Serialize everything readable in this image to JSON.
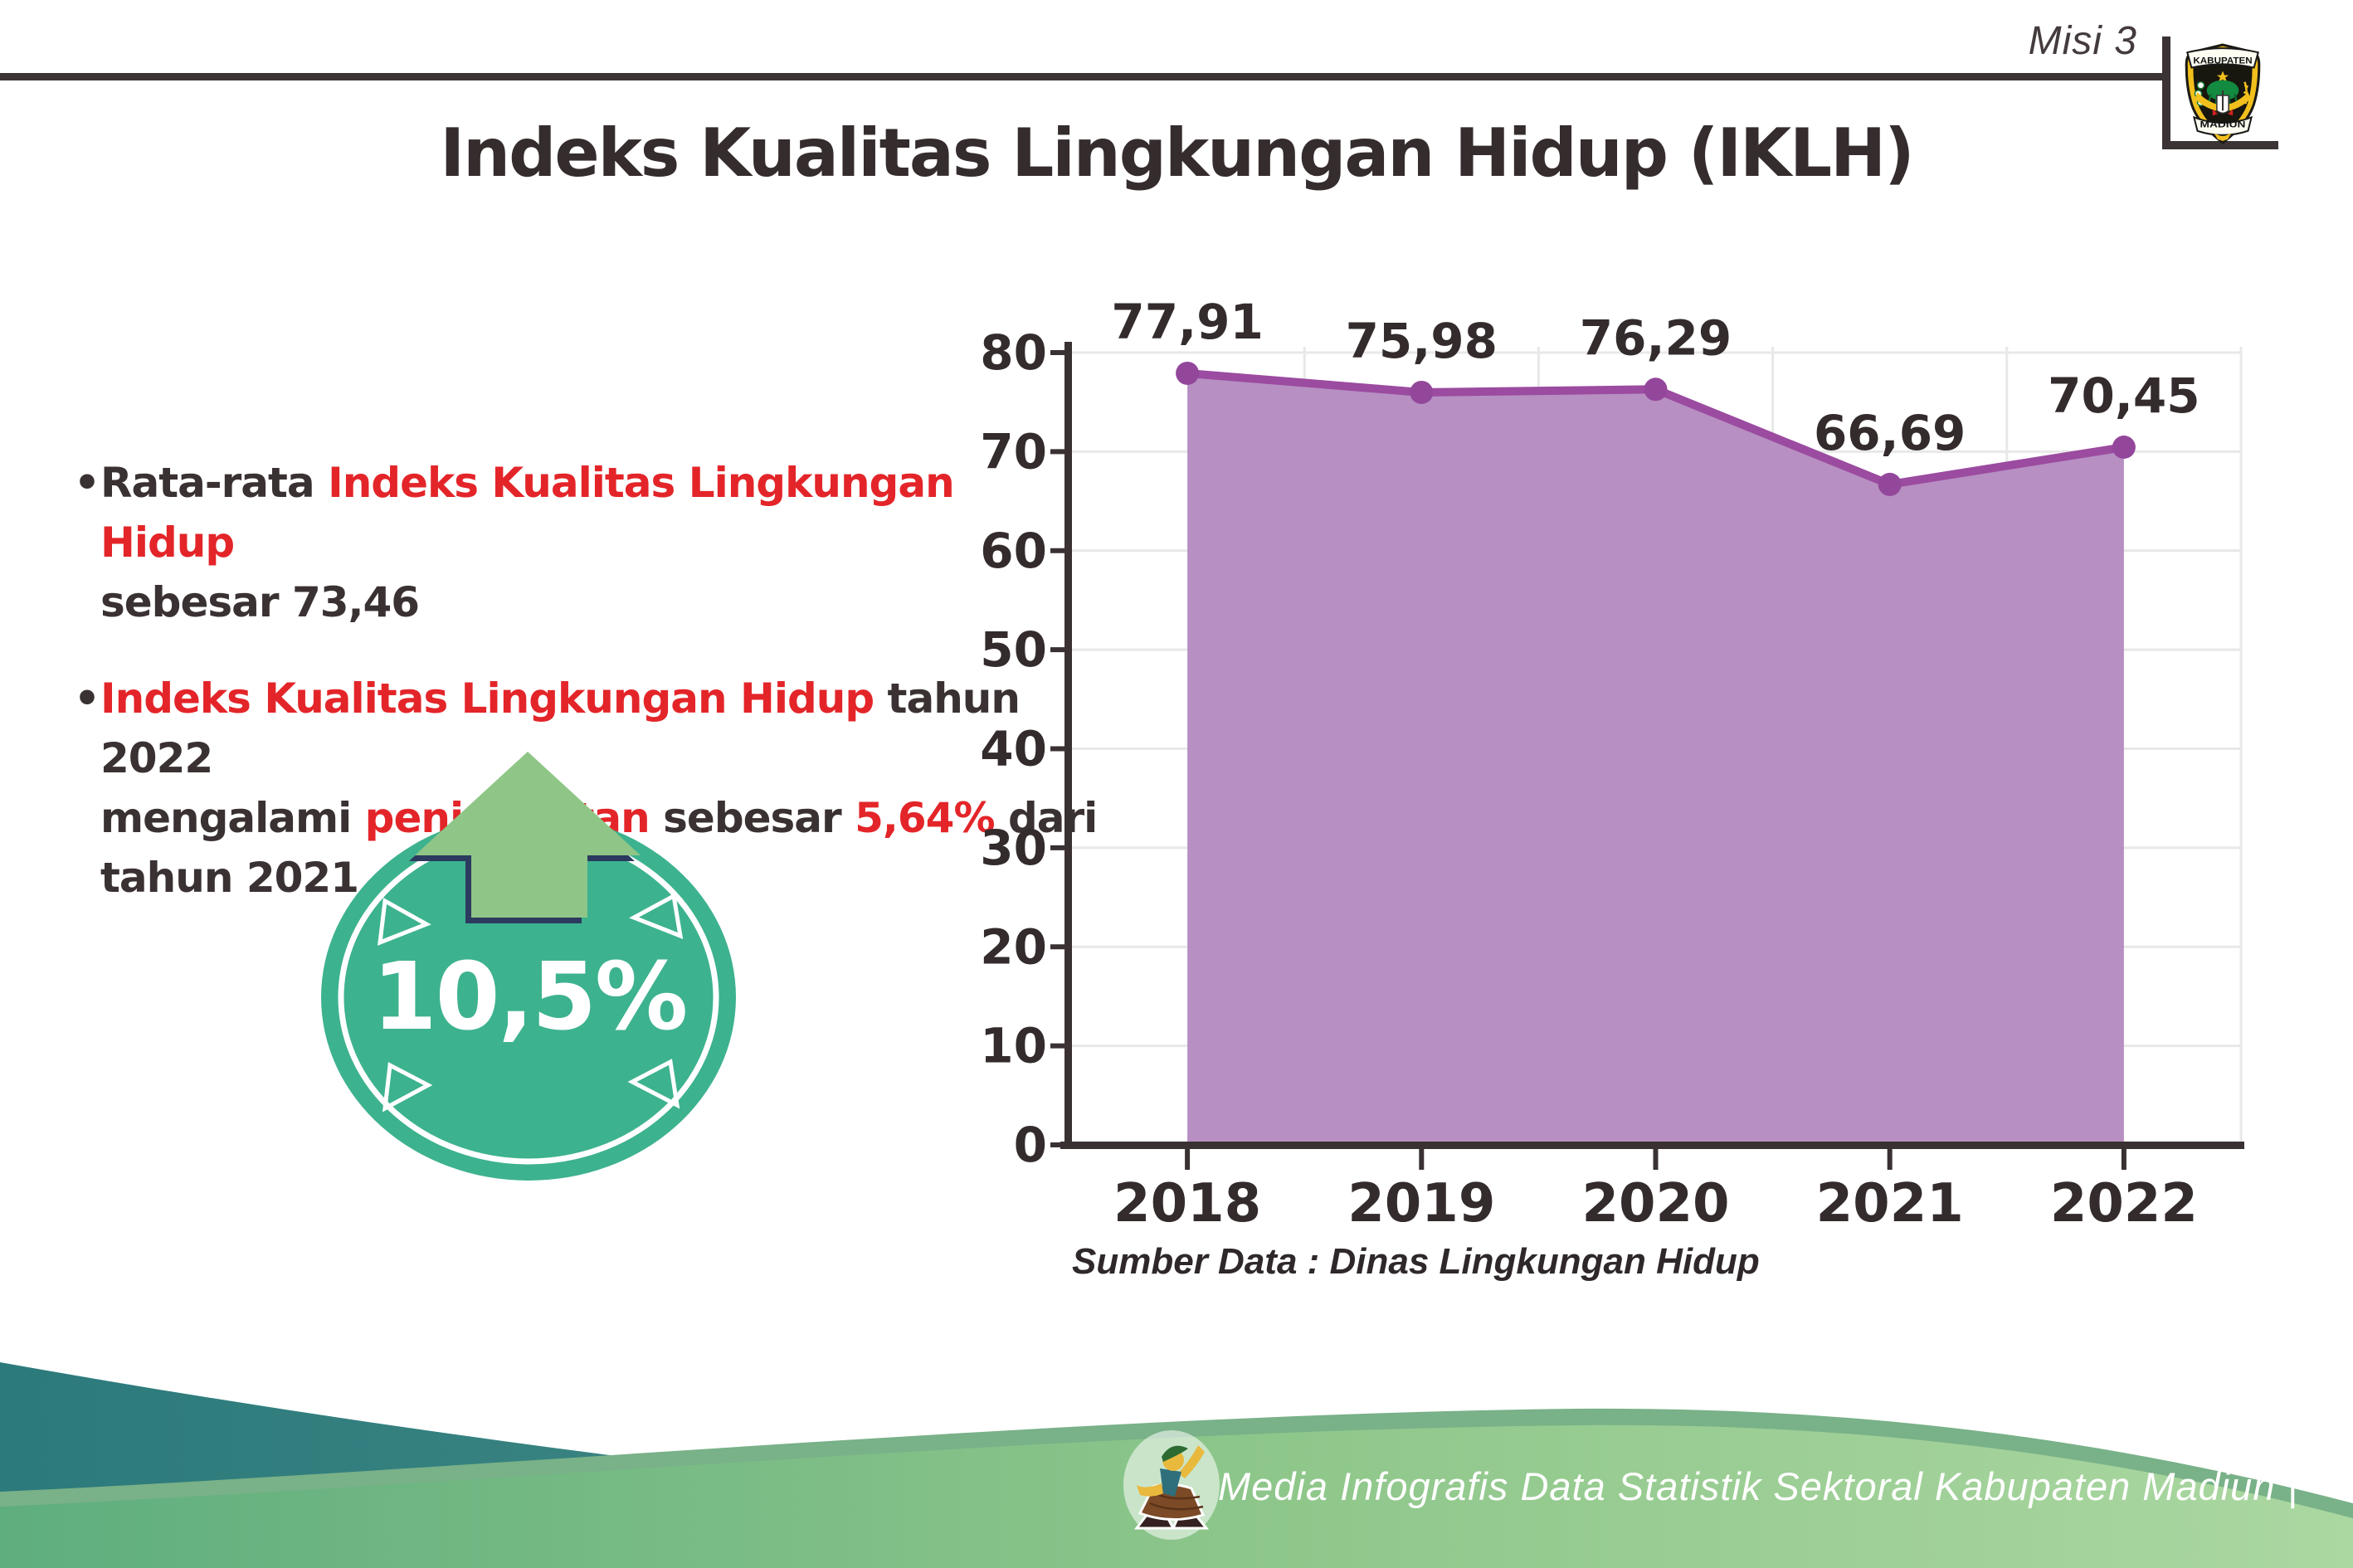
{
  "header": {
    "misi_label": "Misi 3",
    "logo_top": "KABUPATEN",
    "logo_bottom": "MADIUN"
  },
  "title": "Indeks Kualitas Lingkungan Hidup (IKLH)",
  "bullets": {
    "b1_l1_black": "Rata-rata ",
    "b1_l1_red": "Indeks Kualitas Lingkungan Hidup",
    "b1_l2_black": "sebesar 73,46",
    "b2_l1_red": "Indeks Kualitas Lingkungan Hidup",
    "b2_l1_black": " tahun 2022",
    "b2_l2_black1": "mengalami ",
    "b2_l2_red1": "peningkatan",
    "b2_l2_black2": " sebesar ",
    "b2_l2_red2": "5,64%",
    "b2_l2_black3": " dari",
    "b2_l3_black": "tahun 2021",
    "bullet_glyph": "•"
  },
  "badge": {
    "value": "10,5%",
    "circle_color": "#3db28f",
    "arrow_color": "#8fc687",
    "arrow_outline": "#2b3a5e"
  },
  "chart_data": {
    "type": "area",
    "categories": [
      "2018",
      "2019",
      "2020",
      "2021",
      "2022"
    ],
    "values": [
      77.91,
      75.98,
      76.29,
      66.69,
      70.45
    ],
    "point_labels": [
      "77,91",
      "75,98",
      "76,29",
      "66,69",
      "70,45"
    ],
    "title": "",
    "xlabel": "",
    "ylabel": "",
    "ylim": [
      0,
      85
    ],
    "yticks": [
      0,
      10,
      20,
      30,
      40,
      50,
      60,
      70,
      80
    ],
    "grid": true,
    "legend": "none",
    "fill_color": "#b78fc2",
    "line_color": "#9b4ba0",
    "dot_color": "#93479b",
    "grid_color": "#e8e8e8",
    "axis_color": "#3a3132",
    "label_color": "#332b2c"
  },
  "source_note": "Sumber Data : Dinas Lingkungan Hidup",
  "footer": {
    "text": "Media Infografis Data Statistik Sektoral Kabupaten Madiun |"
  }
}
